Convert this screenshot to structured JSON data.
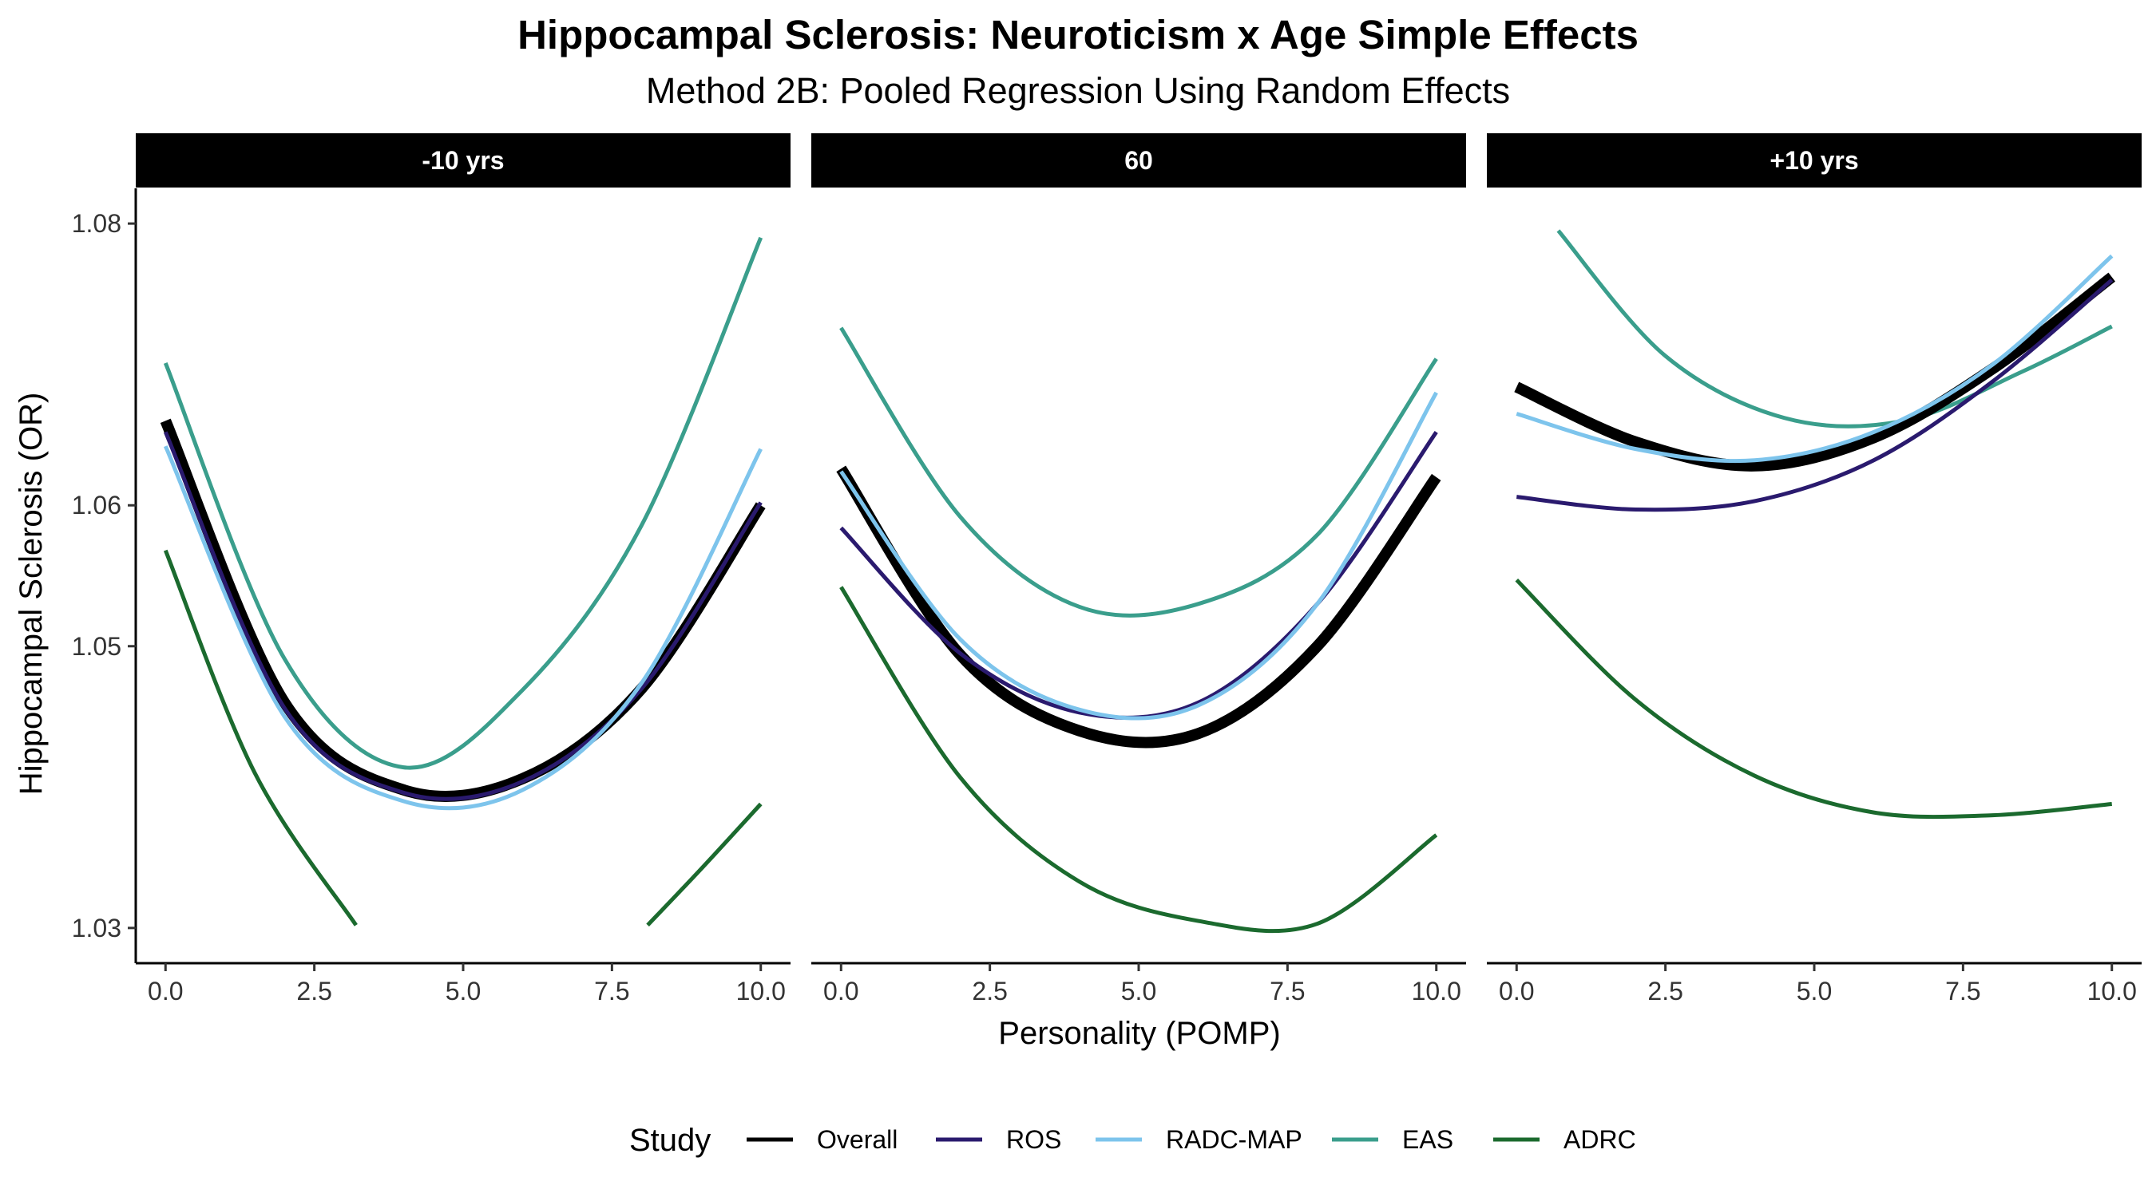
{
  "chart_data": {
    "type": "line",
    "title": "Hippocampal Sclerosis: Neuroticism x Age Simple Effects",
    "subtitle": "Method 2B: Pooled Regression Using Random Effects",
    "xlabel": "Personality (POMP)",
    "ylabel": "Hippocampal Sclerosis (OR)",
    "xlim": [
      -0.5,
      10.5
    ],
    "ylim": [
      1.0275,
      1.0825
    ],
    "x_ticks": [
      0,
      2.5,
      5,
      7.5,
      10
    ],
    "x_tick_labels": [
      "0.0",
      "2.5",
      "5.0",
      "7.5",
      "10.0"
    ],
    "y_ticks": [
      1.03,
      1.05,
      1.06,
      1.08
    ],
    "y_tick_labels": [
      "1.03",
      "1.05",
      "1.06",
      "1.08"
    ],
    "grid": false,
    "legend": {
      "title": "Study",
      "position": "bottom",
      "entries": [
        "Overall",
        "ROS",
        "RADC-MAP",
        "EAS",
        "ADRC"
      ]
    },
    "colors": {
      "Overall": "#000000",
      "ROS": "#2a1a6e",
      "RADC-MAP": "#7dc4ec",
      "EAS": "#3a9e8c",
      "ADRC": "#1b6a2e"
    },
    "panels": [
      {
        "label": "-10 yrs",
        "series": [
          {
            "name": "EAS",
            "x": [
              0,
              2,
              4,
              6,
              8,
              10
            ],
            "y": [
              1.0701,
              1.0491,
              1.0414,
              1.0469,
              1.0586,
              1.079
            ]
          },
          {
            "name": "Overall",
            "x": [
              0,
              2,
              4,
              6,
              8,
              10
            ],
            "y": [
              1.066,
              1.046,
              1.0398,
              1.0406,
              1.047,
              1.06
            ]
          },
          {
            "name": "ROS",
            "x": [
              0,
              2,
              4,
              6,
              8,
              10
            ],
            "y": [
              1.0652,
              1.0456,
              1.0396,
              1.0404,
              1.047,
              1.0602
            ]
          },
          {
            "name": "RADC-MAP",
            "x": [
              0,
              2,
              4,
              6,
              8,
              10
            ],
            "y": [
              1.0642,
              1.045,
              1.039,
              1.0398,
              1.0474,
              1.064
            ]
          },
          {
            "name": "ADRC",
            "x": [
              0,
              1.5,
              3.2
            ],
            "y": [
              1.0568,
              1.041,
              1.0302
            ]
          },
          {
            "name": "ADRC",
            "x": [
              8.1,
              9.0,
              10
            ],
            "y": [
              1.0302,
              1.0342,
              1.0388
            ]
          }
        ]
      },
      {
        "label": "60",
        "series": [
          {
            "name": "EAS",
            "x": [
              0,
              2,
              4,
              6,
              8,
              10
            ],
            "y": [
              1.0726,
              1.0592,
              1.0528,
              1.053,
              1.0579,
              1.0704
            ]
          },
          {
            "name": "Overall",
            "x": [
              0,
              2,
              4,
              6,
              8,
              10
            ],
            "y": [
              1.0626,
              1.0494,
              1.044,
              1.0438,
              1.05,
              1.062
            ]
          },
          {
            "name": "ROS",
            "x": [
              0,
              2,
              4,
              6,
              8,
              10
            ],
            "y": [
              1.0584,
              1.0495,
              1.0453,
              1.046,
              1.053,
              1.0652
            ]
          },
          {
            "name": "RADC-MAP",
            "x": [
              0,
              2,
              4,
              6,
              8,
              10
            ],
            "y": [
              1.0624,
              1.0505,
              1.0455,
              1.0458,
              1.053,
              1.068
            ]
          },
          {
            "name": "ADRC",
            "x": [
              0,
              2,
              4,
              6,
              8,
              10
            ],
            "y": [
              1.0542,
              1.0407,
              1.0333,
              1.0305,
              1.0303,
              1.0366
            ]
          }
        ]
      },
      {
        "label": "+10 yrs",
        "series": [
          {
            "name": "EAS",
            "x": [
              0.7,
              2.5,
              4.5,
              6.5,
              8.5,
              10
            ],
            "y": [
              1.0795,
              1.0706,
              1.0662,
              1.066,
              1.0695,
              1.0727
            ]
          },
          {
            "name": "Overall",
            "x": [
              0,
              2,
              4,
              6,
              8,
              10
            ],
            "y": [
              1.0684,
              1.0645,
              1.0628,
              1.0648,
              1.0697,
              1.0762
            ]
          },
          {
            "name": "ROS",
            "x": [
              0,
              2,
              4,
              6,
              8,
              10
            ],
            "y": [
              1.0606,
              1.0597,
              1.0603,
              1.0632,
              1.0688,
              1.076
            ]
          },
          {
            "name": "RADC-MAP",
            "x": [
              0,
              2,
              4,
              6,
              8,
              10
            ],
            "y": [
              1.0665,
              1.064,
              1.0632,
              1.0652,
              1.07,
              1.0777
            ]
          },
          {
            "name": "ADRC",
            "x": [
              0,
              2,
              4,
              6,
              8,
              10
            ],
            "y": [
              1.0547,
              1.0462,
              1.0408,
              1.0382,
              1.038,
              1.0388
            ]
          }
        ]
      }
    ]
  }
}
